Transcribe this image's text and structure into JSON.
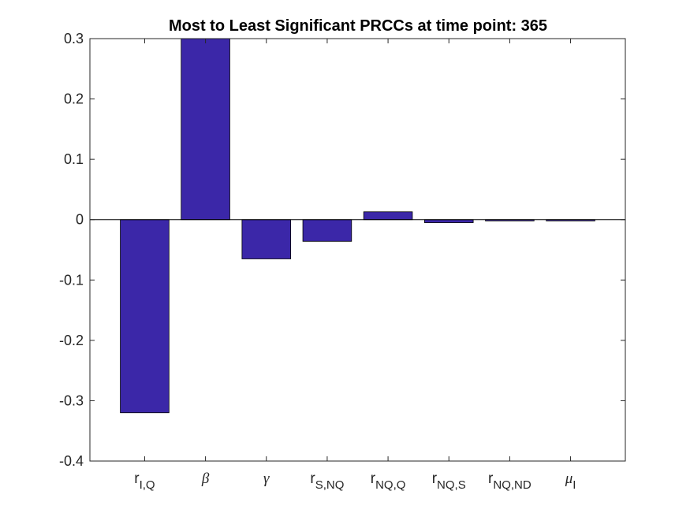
{
  "chart_data": {
    "type": "bar",
    "title": "Most to Least Significant PRCCs at time point: 365",
    "xlabel": "",
    "ylabel": "",
    "ylim": [
      -0.4,
      0.3
    ],
    "yticks": [
      {
        "value": 0.3,
        "label": "0.3"
      },
      {
        "value": 0.2,
        "label": "0.2"
      },
      {
        "value": 0.1,
        "label": "0.1"
      },
      {
        "value": 0,
        "label": "0"
      },
      {
        "value": -0.1,
        "label": "-0.1"
      },
      {
        "value": -0.2,
        "label": "-0.2"
      },
      {
        "value": -0.3,
        "label": "-0.3"
      },
      {
        "value": -0.4,
        "label": "-0.4"
      }
    ],
    "categories": [
      {
        "base": "r",
        "sub": "I,Q",
        "greek": false
      },
      {
        "base": "β",
        "sub": "",
        "greek": true
      },
      {
        "base": "γ",
        "sub": "",
        "greek": true
      },
      {
        "base": "r",
        "sub": "S,NQ",
        "greek": false
      },
      {
        "base": "r",
        "sub": "NQ,Q",
        "greek": false
      },
      {
        "base": "r",
        "sub": "NQ,S",
        "greek": false
      },
      {
        "base": "r",
        "sub": "NQ,ND",
        "greek": false
      },
      {
        "base": "μ",
        "sub": "I",
        "greek": true
      }
    ],
    "values": [
      -0.32,
      0.3,
      -0.065,
      -0.036,
      0.013,
      -0.005,
      -0.002,
      -0.002
    ],
    "grid": false,
    "bar_color": "#3b27a8",
    "bar_edge_color": "#000000"
  }
}
